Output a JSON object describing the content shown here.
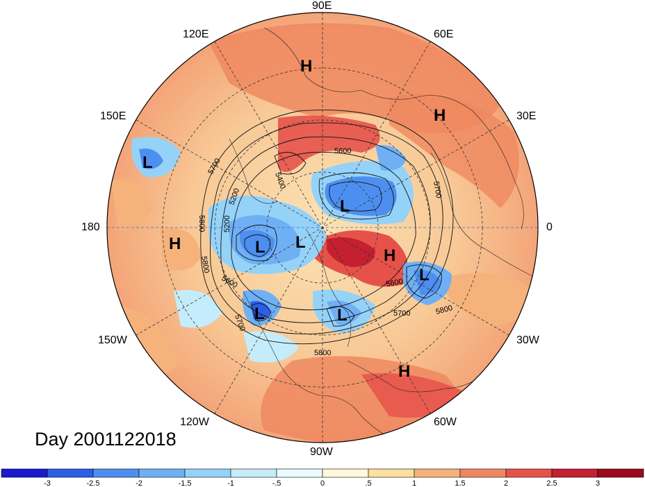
{
  "title": "Day 2001122018",
  "longitude_labels": {
    "e90": "90E",
    "e60": "60E",
    "e30": "30E",
    "zero": "0",
    "w30": "30W",
    "w60": "60W",
    "w90": "90W",
    "w120": "120W",
    "w150": "150W",
    "dateline": "180",
    "e150": "150E",
    "e120": "120E"
  },
  "pressure_centers": [
    {
      "label": "H",
      "name": "eurasia-north"
    },
    {
      "label": "H",
      "name": "europe-east"
    },
    {
      "label": "L",
      "name": "pacific-west"
    },
    {
      "label": "L",
      "name": "arctic-siberia"
    },
    {
      "label": "H",
      "name": "pacific-central"
    },
    {
      "label": "L",
      "name": "alaska"
    },
    {
      "label": "L",
      "name": "canada-arctic"
    },
    {
      "label": "H",
      "name": "greenland"
    },
    {
      "label": "L",
      "name": "north-atlantic"
    },
    {
      "label": "L",
      "name": "gulf-of-alaska"
    },
    {
      "label": "L",
      "name": "great-lakes"
    },
    {
      "label": "H",
      "name": "atlantic-subtropic"
    }
  ],
  "contour_labels": [
    "5600",
    "5400",
    "5700",
    "5200",
    "5800",
    "5200",
    "5800",
    "5600",
    "5700",
    "5600",
    "5700",
    "5800",
    "5700",
    "5800"
  ],
  "colorbar": {
    "ticks": [
      "-3",
      "-2.5",
      "-2",
      "-1.5",
      "-1",
      "-.5",
      "0",
      ".5",
      "1",
      "1.5",
      "2",
      "2.5",
      "3"
    ],
    "colors": [
      "#1a1ad0",
      "#2c5fe6",
      "#4d8ff0",
      "#6fb0f5",
      "#95d2f8",
      "#c5ecfb",
      "#eafaff",
      "#fff8dc",
      "#fde0a0",
      "#f6b27b",
      "#ef8860",
      "#e6524a",
      "#c42030",
      "#9c0a1e"
    ]
  }
}
